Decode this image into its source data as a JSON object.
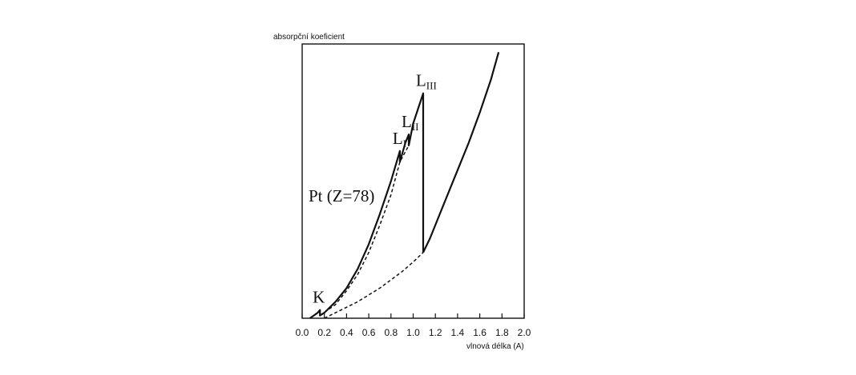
{
  "chart_data": {
    "type": "line",
    "ylabel": "absorpční koeficient",
    "xlabel": "vlnová délka (A)",
    "xlim": [
      0.0,
      2.0
    ],
    "x_ticks": [
      "0.0",
      "0.2",
      "0.4",
      "0.6",
      "0.8",
      "1.0",
      "1.2",
      "1.4",
      "1.6",
      "1.8",
      "2.0"
    ],
    "ylim": [
      0,
      100
    ],
    "grid": false,
    "annotation": "Pt (Z=78)",
    "edges": [
      {
        "letter": "K",
        "sub": "",
        "x": 0.16,
        "y": 3
      },
      {
        "letter": "L",
        "sub": "I",
        "x": 0.88,
        "y": 61
      },
      {
        "letter": "L",
        "sub": "II",
        "x": 0.96,
        "y": 67
      },
      {
        "letter": "L",
        "sub": "III",
        "x": 1.09,
        "y": 82
      }
    ],
    "series": [
      {
        "style": "solid",
        "points": [
          [
            0.07,
            0
          ],
          [
            0.14,
            2
          ],
          [
            0.16,
            3
          ],
          [
            0.16,
            1
          ],
          [
            0.2,
            2
          ],
          [
            0.3,
            6
          ],
          [
            0.4,
            11
          ],
          [
            0.5,
            18
          ],
          [
            0.6,
            27
          ],
          [
            0.7,
            38
          ],
          [
            0.8,
            50
          ],
          [
            0.88,
            61
          ],
          [
            0.88,
            57
          ],
          [
            0.93,
            64
          ],
          [
            0.96,
            67
          ],
          [
            0.96,
            63
          ],
          [
            1.0,
            71
          ],
          [
            1.09,
            82
          ],
          [
            1.09,
            24
          ]
        ]
      },
      {
        "style": "solid",
        "points": [
          [
            1.09,
            24
          ],
          [
            1.15,
            29
          ],
          [
            1.2,
            34
          ],
          [
            1.3,
            44
          ],
          [
            1.4,
            54
          ],
          [
            1.5,
            64
          ],
          [
            1.6,
            75
          ],
          [
            1.7,
            87
          ],
          [
            1.77,
            97
          ]
        ]
      },
      {
        "style": "dashed",
        "points": [
          [
            0.16,
            1
          ],
          [
            0.3,
            5
          ],
          [
            0.4,
            10
          ],
          [
            0.5,
            16
          ],
          [
            0.6,
            24
          ],
          [
            0.7,
            34
          ],
          [
            0.8,
            45
          ],
          [
            0.88,
            57
          ],
          [
            0.96,
            63
          ]
        ]
      },
      {
        "style": "dashed",
        "points": [
          [
            0.2,
            0
          ],
          [
            0.3,
            2
          ],
          [
            0.4,
            4
          ],
          [
            0.5,
            6
          ],
          [
            0.6,
            8.5
          ],
          [
            0.7,
            11
          ],
          [
            0.8,
            14
          ],
          [
            0.9,
            17
          ],
          [
            1.0,
            20.5
          ],
          [
            1.09,
            24
          ]
        ]
      }
    ]
  }
}
